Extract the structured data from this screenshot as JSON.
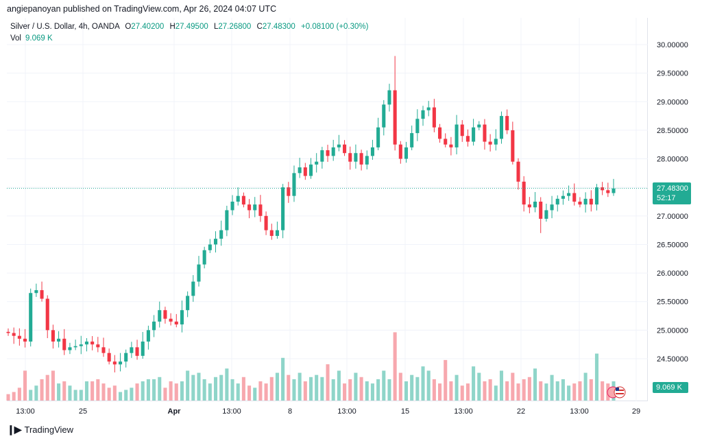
{
  "header": {
    "publish_line": "angiepanoyan published on TradingView.com, Apr 26, 2024 04:07 UTC"
  },
  "legend": {
    "symbol": "Silver / U.S. Dollar, 4h, OANDA",
    "open_label": "O",
    "open": "27.40200",
    "high_label": "H",
    "high": "27.49500",
    "low_label": "L",
    "low": "27.26800",
    "close_label": "C",
    "close": "27.48300",
    "change": "+0.08100 (+0.30%)",
    "vol_label": "Vol",
    "vol_value": "9.069 K"
  },
  "tags": {
    "price": "27.48300",
    "countdown": "52:17",
    "volume": "9.069 K"
  },
  "footer": {
    "brand": "TradingView"
  },
  "colors": {
    "up": "#22ab94",
    "down": "#f23645",
    "up_vol": "#8fd5c9",
    "down_vol": "#f7a8ae",
    "grid": "#f0f3fa"
  },
  "chart_data": {
    "type": "candlestick",
    "ylim": [
      23.85,
      30.2
    ],
    "y_ticks": [
      "24.50000",
      "25.00000",
      "25.50000",
      "26.00000",
      "26.50000",
      "27.00000",
      "27.50000",
      "28.00000",
      "28.50000",
      "29.00000",
      "29.50000",
      "30.00000"
    ],
    "x_ticks": [
      "13:00",
      "25",
      "Apr",
      "13:00",
      "8",
      "13:00",
      "15",
      "13:00",
      "22",
      "13:00",
      "29"
    ],
    "last_price": 27.483,
    "close_path": [
      24.95,
      24.9,
      24.85,
      24.8,
      25.65,
      25.7,
      25.55,
      25.0,
      24.8,
      24.85,
      24.65,
      24.7,
      24.72,
      24.75,
      24.8,
      24.75,
      24.7,
      24.6,
      24.45,
      24.4,
      24.45,
      24.6,
      24.7,
      24.55,
      24.8,
      25.0,
      25.15,
      25.35,
      25.2,
      25.15,
      25.1,
      25.35,
      25.6,
      25.85,
      26.15,
      26.4,
      26.5,
      26.6,
      26.75,
      27.1,
      27.25,
      27.35,
      27.2,
      27.1,
      27.2,
      27.0,
      26.75,
      26.65,
      26.75,
      27.5,
      27.35,
      27.75,
      27.85,
      27.7,
      27.9,
      27.95,
      28.15,
      28.05,
      28.2,
      28.25,
      28.1,
      27.95,
      28.1,
      27.9,
      28.05,
      28.2,
      28.55,
      28.95,
      29.2,
      28.25,
      28.0,
      28.2,
      28.45,
      28.7,
      28.85,
      28.9,
      28.55,
      28.35,
      28.25,
      28.2,
      28.6,
      28.4,
      28.3,
      28.55,
      28.6,
      28.3,
      28.25,
      28.35,
      28.75,
      28.5,
      27.95,
      27.6,
      27.2,
      27.15,
      27.25,
      26.95,
      27.1,
      27.2,
      27.3,
      27.35,
      27.4,
      27.25,
      27.2,
      27.3,
      27.2,
      27.5,
      27.45,
      27.4,
      27.48
    ],
    "volume_k": [
      3,
      4,
      6,
      14,
      5,
      7,
      10,
      12,
      14,
      8,
      9,
      7,
      5,
      5,
      9,
      9,
      10,
      8,
      6,
      7,
      4,
      5,
      6,
      8,
      9,
      10,
      10,
      11,
      6,
      9,
      8,
      9,
      14,
      12,
      13,
      10,
      8,
      11,
      12,
      15,
      10,
      8,
      11,
      7,
      6,
      9,
      8,
      11,
      13,
      20,
      12,
      10,
      13,
      9,
      11,
      12,
      11,
      17,
      10,
      14,
      8,
      10,
      13,
      11,
      9,
      8,
      10,
      14,
      10,
      32,
      13,
      9,
      12,
      11,
      16,
      14,
      10,
      8,
      19,
      9,
      12,
      7,
      8,
      16,
      13,
      9,
      10,
      7,
      14,
      9,
      13,
      8,
      10,
      11,
      15,
      9,
      8,
      12,
      9,
      10,
      7,
      8,
      9,
      13,
      10,
      22,
      9,
      8,
      9
    ],
    "volume_scale_max": 45,
    "high_spike": 29.8,
    "low_spike": 26.7
  }
}
